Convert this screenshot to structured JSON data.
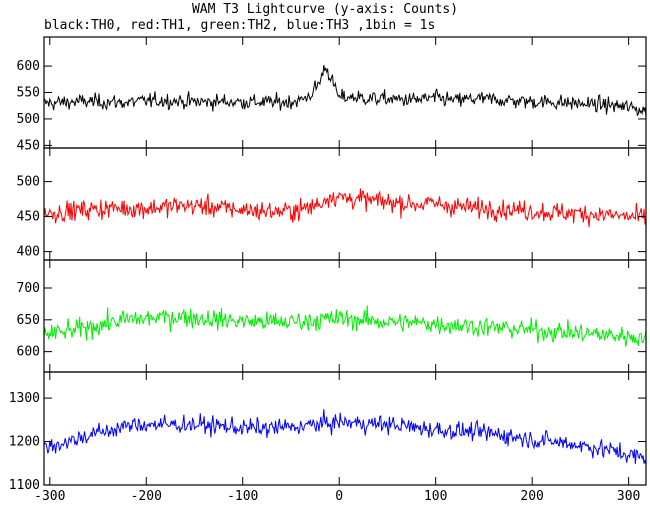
{
  "chart_data": {
    "type": "line",
    "title": "WAM T3 Lightcurve (y-axis: Counts)",
    "subtitle": "black:TH0, red:TH1, green:TH2, blue:TH3 ,1bin = 1s",
    "xlim": [
      -306,
      318
    ],
    "x_ticks": [
      -300,
      -200,
      -100,
      0,
      100,
      200,
      300
    ],
    "x_tick_labels": [
      "-300",
      "-200",
      "-100",
      "0",
      "100",
      "200",
      "300"
    ],
    "grid": false,
    "series": [
      {
        "name": "TH0",
        "color": "#000000",
        "ylim": [
          445,
          655
        ],
        "y_ticks": [
          450,
          500,
          550,
          600
        ],
        "baseline": 535,
        "spread": 55,
        "x": [
          -300,
          -280,
          -260,
          -240,
          -220,
          -200,
          -180,
          -160,
          -140,
          -120,
          -100,
          -80,
          -60,
          -40,
          -30,
          -20,
          -15,
          -10,
          -5,
          0,
          10,
          20,
          40,
          60,
          80,
          100,
          120,
          140,
          160,
          180,
          200,
          220,
          240,
          260,
          280,
          300,
          318
        ],
        "values": [
          530,
          532,
          533,
          532,
          531,
          534,
          535,
          533,
          532,
          533,
          532,
          532,
          531,
          535,
          545,
          570,
          600,
          585,
          560,
          540,
          542,
          540,
          538,
          537,
          536,
          540,
          535,
          538,
          537,
          534,
          533,
          532,
          530,
          528,
          526,
          522,
          515
        ]
      },
      {
        "name": "TH1",
        "color": "#ff0000",
        "ylim": [
          388,
          548
        ],
        "y_ticks": [
          400,
          450,
          500
        ],
        "baseline": 462,
        "spread": 55,
        "x": [
          -300,
          -280,
          -260,
          -240,
          -220,
          -200,
          -180,
          -160,
          -140,
          -120,
          -100,
          -80,
          -60,
          -40,
          -20,
          -10,
          0,
          10,
          20,
          40,
          60,
          80,
          100,
          120,
          140,
          160,
          180,
          200,
          220,
          240,
          260,
          280,
          300,
          318
        ],
        "values": [
          455,
          458,
          460,
          462,
          462,
          462,
          464,
          466,
          465,
          462,
          460,
          458,
          457,
          460,
          468,
          480,
          478,
          476,
          475,
          472,
          470,
          468,
          468,
          465,
          462,
          462,
          460,
          458,
          456,
          455,
          454,
          452,
          450,
          448
        ]
      },
      {
        "name": "TH2",
        "color": "#00ee00",
        "ylim": [
          568,
          744
        ],
        "y_ticks": [
          600,
          650,
          700
        ],
        "baseline": 645,
        "spread": 60,
        "x": [
          -300,
          -280,
          -260,
          -240,
          -220,
          -200,
          -180,
          -160,
          -140,
          -120,
          -100,
          -80,
          -60,
          -40,
          -20,
          0,
          20,
          40,
          60,
          80,
          100,
          120,
          140,
          160,
          180,
          200,
          220,
          240,
          260,
          280,
          300,
          318
        ],
        "values": [
          628,
          632,
          638,
          645,
          650,
          652,
          654,
          655,
          652,
          650,
          648,
          647,
          646,
          648,
          650,
          652,
          650,
          648,
          646,
          645,
          644,
          642,
          640,
          638,
          636,
          634,
          632,
          630,
          628,
          626,
          624,
          622
        ]
      },
      {
        "name": "TH3",
        "color": "#0000ff",
        "ylim": [
          1100,
          1360
        ],
        "y_ticks": [
          1100,
          1200,
          1300
        ],
        "baseline": 1225,
        "spread": 80,
        "x": [
          -300,
          -280,
          -260,
          -240,
          -220,
          -200,
          -180,
          -160,
          -140,
          -120,
          -100,
          -80,
          -60,
          -40,
          -20,
          0,
          20,
          40,
          60,
          80,
          100,
          120,
          140,
          160,
          180,
          200,
          220,
          240,
          260,
          280,
          300,
          318
        ],
        "values": [
          1190,
          1200,
          1215,
          1225,
          1235,
          1240,
          1238,
          1240,
          1238,
          1235,
          1232,
          1230,
          1232,
          1235,
          1240,
          1245,
          1242,
          1240,
          1238,
          1232,
          1228,
          1225,
          1222,
          1218,
          1212,
          1205,
          1200,
          1195,
          1188,
          1180,
          1170,
          1160
        ]
      }
    ]
  }
}
